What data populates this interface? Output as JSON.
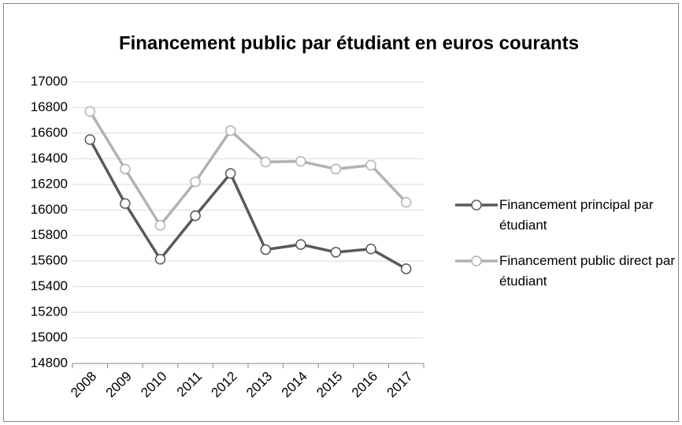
{
  "chart_data": {
    "type": "line",
    "title": "Financement public par étudiant en euros courants",
    "categories": [
      "2008",
      "2009",
      "2010",
      "2011",
      "2012",
      "2013",
      "2014",
      "2015",
      "2016",
      "2017"
    ],
    "series": [
      {
        "name": "Financement principal par étudiant",
        "color": "#595959",
        "values": [
          16550,
          16050,
          15615,
          15955,
          16285,
          15690,
          15730,
          15670,
          15695,
          15540
        ]
      },
      {
        "name": "Financement public direct par étudiant",
        "color": "#b2b2b2",
        "values": [
          16770,
          16320,
          15880,
          16220,
          16620,
          16375,
          16380,
          16320,
          16350,
          16060
        ]
      }
    ],
    "ylim": [
      14800,
      17000
    ],
    "yticks": [
      14800,
      15000,
      15200,
      15400,
      15600,
      15800,
      16000,
      16200,
      16400,
      16600,
      16800,
      17000
    ],
    "grid": true,
    "legend": "right"
  }
}
